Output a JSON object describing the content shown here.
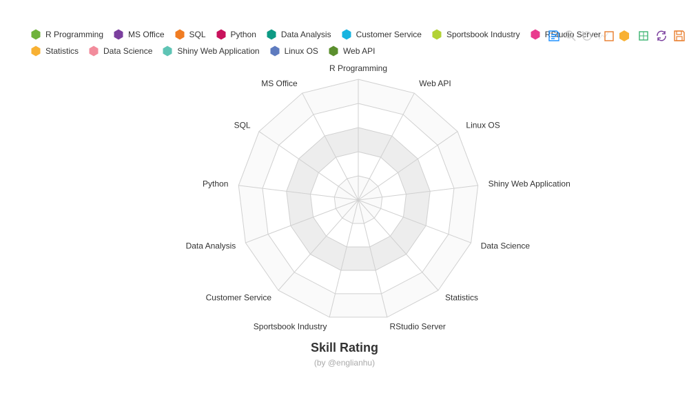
{
  "chart_data": {
    "type": "radar",
    "title": "Skill Rating",
    "subtitle": "(by @englianhu)",
    "indicators": [
      "R Programming",
      "Web API",
      "Linux OS",
      "Shiny Web Application",
      "Data Science",
      "Statistics",
      "RStudio Server",
      "Sportsbook Industry",
      "Customer Service",
      "Data Analysis",
      "Python",
      "SQL",
      "MS Office"
    ],
    "series": [],
    "legend": [
      {
        "label": "R Programming",
        "color": "#6fb33b"
      },
      {
        "label": "MS Office",
        "color": "#7b3f9e"
      },
      {
        "label": "SQL",
        "color": "#f07c22"
      },
      {
        "label": "Python",
        "color": "#c8125c"
      },
      {
        "label": "Data Analysis",
        "color": "#0d9a84"
      },
      {
        "label": "Customer Service",
        "color": "#17b4e0"
      },
      {
        "label": "Sportsbook Industry",
        "color": "#b2d235"
      },
      {
        "label": "RStudio Server",
        "color": "#e93a8e"
      },
      {
        "label": "Statistics",
        "color": "#f8b133"
      },
      {
        "label": "Data Science",
        "color": "#f28c9c"
      },
      {
        "label": "Shiny Web Application",
        "color": "#5fc4b5"
      },
      {
        "label": "Linux OS",
        "color": "#5e7bbf"
      },
      {
        "label": "Web API",
        "color": "#5b8f2e"
      }
    ],
    "legend_placement": "top",
    "split_number": 5,
    "split_area": true
  },
  "toolbox": {
    "icons": [
      "dataview-icon",
      "data-zoom-icon",
      "zoom-reset-icon",
      "line-chart-icon",
      "bar-chart-icon",
      "stack-icon",
      "tiled-icon",
      "restore-icon",
      "save-image-icon"
    ]
  }
}
